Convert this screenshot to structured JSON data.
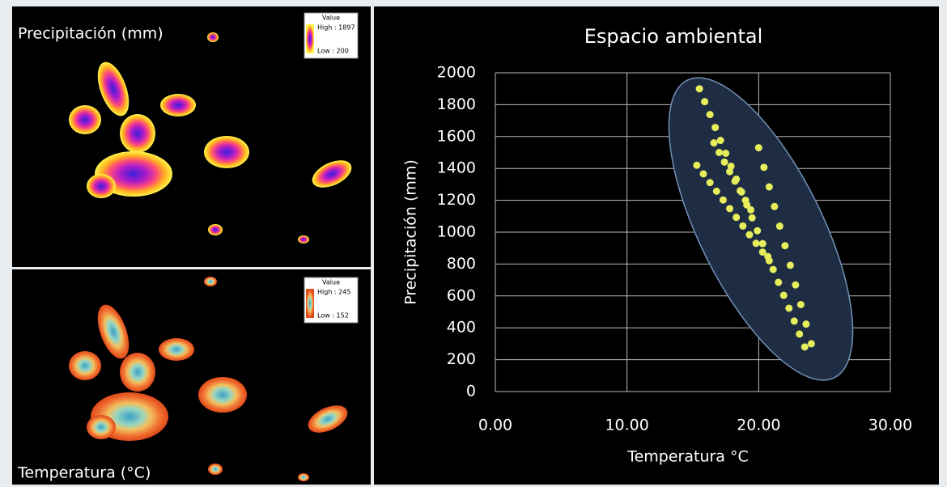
{
  "maps": [
    {
      "title": "Precipitación (mm)",
      "legend": {
        "title": "Value",
        "high": "High : 1897",
        "low": "Low : 200"
      }
    },
    {
      "title": "Temperatura (°C)",
      "legend": {
        "title": "Value",
        "high": "High : 245",
        "low": "Low : 152"
      }
    }
  ],
  "chart_data": {
    "type": "scatter",
    "title": "Espacio ambiental",
    "x_label": "Temperatura  °C",
    "y_label": "Precipitación (mm)",
    "series": [
      {
        "color": "#e6ee5c",
        "x": [
          15.5,
          15.9,
          16.3,
          16.7,
          17.1,
          17.5,
          17.9,
          18.3,
          18.7,
          19.1,
          19.5,
          19.9,
          20.3,
          20.7,
          21.1,
          21.5,
          21.9,
          22.3,
          22.7,
          23.1,
          23.5,
          15.3,
          15.8,
          16.3,
          16.8,
          17.3,
          17.8,
          18.3,
          18.8,
          19.3,
          19.8,
          20.3,
          20.8,
          20,
          20.4,
          20.8,
          21.2,
          21.6,
          22,
          22.4,
          22.8,
          23.2,
          23.6,
          24,
          16.6,
          17,
          17.4,
          17.8,
          18.2,
          18.6,
          19,
          19.4
        ],
        "values": [
          1900,
          1819,
          1738,
          1657,
          1576,
          1495,
          1414,
          1333,
          1252,
          1171,
          1090,
          1009,
          928,
          847,
          766,
          685,
          604,
          523,
          442,
          361,
          280,
          1420,
          1366,
          1311,
          1257,
          1202,
          1148,
          1093,
          1039,
          984,
          930,
          875,
          821,
          1530,
          1407,
          1284,
          1161,
          1038,
          915,
          792,
          669,
          546,
          423,
          300,
          1560,
          1500,
          1440,
          1380,
          1320,
          1260,
          1200,
          1140
        ]
      }
    ],
    "xlim": [
      0,
      30
    ],
    "xticks": [
      {
        "value": 0,
        "label": "0.00"
      },
      {
        "value": 10,
        "label": "10.00"
      },
      {
        "value": 20,
        "label": "20.00"
      },
      {
        "value": 30,
        "label": "30.00"
      }
    ],
    "ylim": [
      0,
      2000
    ],
    "yticks": [
      0,
      200,
      400,
      600,
      800,
      1000,
      1200,
      1400,
      1600,
      1800,
      2000
    ],
    "grid": true
  }
}
